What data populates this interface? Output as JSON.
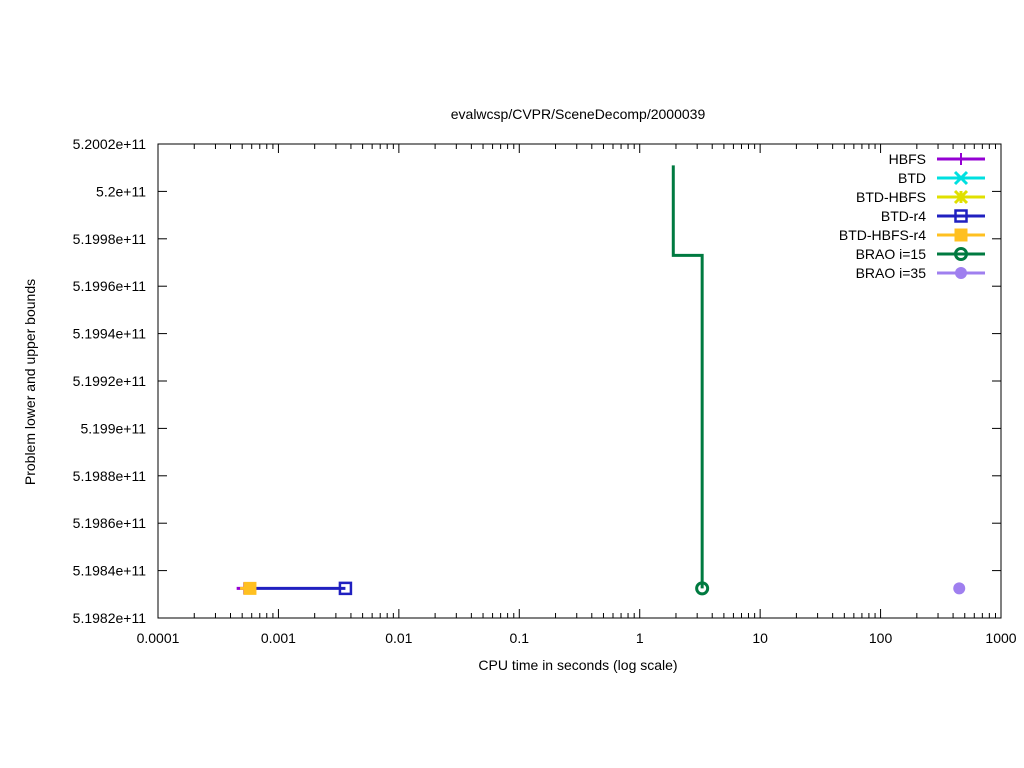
{
  "chart_data": {
    "type": "line",
    "title": "evalwcsp/CVPR/SceneDecomp/2000039",
    "xlabel": "CPU time in seconds (log scale)",
    "ylabel": "Problem lower and upper bounds",
    "x_scale": "log",
    "xlim": [
      0.0001,
      1000
    ],
    "ylim": [
      519820000000,
      520020000000
    ],
    "x_ticks": [
      0.0001,
      0.001,
      0.01,
      0.1,
      1,
      10,
      100,
      1000
    ],
    "x_tick_labels": [
      "0.0001",
      "0.001",
      "0.01",
      "0.1",
      "1",
      "10",
      "100",
      "1000"
    ],
    "y_ticks": [
      519820000000,
      519840000000,
      519860000000,
      519880000000,
      519900000000,
      519920000000,
      519940000000,
      519960000000,
      519980000000,
      520000000000,
      520020000000
    ],
    "y_tick_labels": [
      "5.1982e+11",
      "5.1984e+11",
      "5.1986e+11",
      "5.1988e+11",
      "5.199e+11",
      "5.1992e+11",
      "5.1994e+11",
      "5.1996e+11",
      "5.1998e+11",
      "5.2e+11",
      "5.2002e+11"
    ],
    "grid": false,
    "legend_position": "top-right",
    "series": [
      {
        "name": "HBFS",
        "color": "#9400d3",
        "marker": "plus",
        "style": "line",
        "points": [
          [
            0.00045,
            519832500000
          ],
          [
            0.00052,
            519832500000
          ]
        ]
      },
      {
        "name": "BTD",
        "color": "#00e0e0",
        "marker": "cross",
        "style": "line",
        "points": []
      },
      {
        "name": "BTD-HBFS",
        "color": "#e0e000",
        "marker": "star",
        "style": "line",
        "points": []
      },
      {
        "name": "BTD-r4",
        "color": "#2020c0",
        "marker": "open-square",
        "style": "line",
        "points": [
          [
            0.00052,
            519832500000
          ],
          [
            0.0036,
            519832500000
          ]
        ]
      },
      {
        "name": "BTD-HBFS-r4",
        "color": "#ffc020",
        "marker": "filled-square",
        "style": "line",
        "points": [
          [
            0.00048,
            519832500000
          ],
          [
            0.00058,
            519832500000
          ]
        ]
      },
      {
        "name": "BRAO i=15",
        "color": "#007a40",
        "marker": "open-circle",
        "style": "step",
        "points": [
          [
            1.9,
            520011000000
          ],
          [
            1.9,
            519973000000
          ],
          [
            3.3,
            519973000000
          ],
          [
            3.3,
            519832500000
          ]
        ]
      },
      {
        "name": "BRAO i=35",
        "color": "#9f7fef",
        "marker": "filled-circle",
        "style": "point",
        "points": [
          [
            450,
            519832500000
          ]
        ]
      }
    ]
  }
}
